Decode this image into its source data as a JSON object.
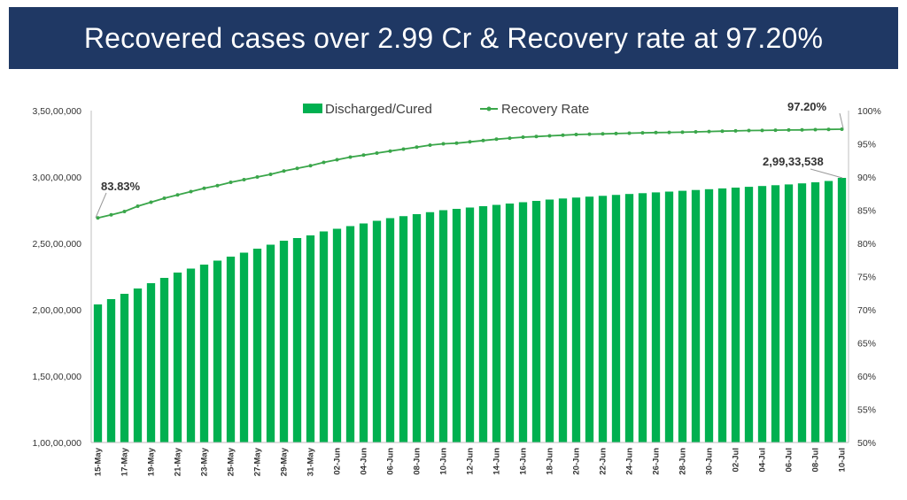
{
  "banner": {
    "title": "Recovered cases over 2.99 Cr & Recovery rate at 97.20%"
  },
  "chart_data": {
    "type": "bar",
    "categories": [
      "15-May",
      "16-May",
      "17-May",
      "18-May",
      "19-May",
      "20-May",
      "21-May",
      "22-May",
      "23-May",
      "24-May",
      "25-May",
      "26-May",
      "27-May",
      "28-May",
      "29-May",
      "30-May",
      "31-May",
      "01-Jun",
      "02-Jun",
      "03-Jun",
      "04-Jun",
      "05-Jun",
      "06-Jun",
      "07-Jun",
      "08-Jun",
      "09-Jun",
      "10-Jun",
      "11-Jun",
      "12-Jun",
      "13-Jun",
      "14-Jun",
      "15-Jun",
      "16-Jun",
      "17-Jun",
      "18-Jun",
      "19-Jun",
      "20-Jun",
      "21-Jun",
      "22-Jun",
      "23-Jun",
      "24-Jun",
      "25-Jun",
      "26-Jun",
      "27-Jun",
      "28-Jun",
      "29-Jun",
      "30-Jun",
      "01-Jul",
      "02-Jul",
      "03-Jul",
      "04-Jul",
      "05-Jul",
      "06-Jul",
      "07-Jul",
      "08-Jul",
      "09-Jul",
      "10-Jul"
    ],
    "x_tick_labels": [
      "15-May",
      "17-May",
      "19-May",
      "21-May",
      "23-May",
      "25-May",
      "27-May",
      "29-May",
      "31-May",
      "02-Jun",
      "04-Jun",
      "06-Jun",
      "08-Jun",
      "10-Jun",
      "12-Jun",
      "14-Jun",
      "16-Jun",
      "18-Jun",
      "20-Jun",
      "22-Jun",
      "24-Jun",
      "26-Jun",
      "28-Jun",
      "30-Jun",
      "02-Jul",
      "04-Jul",
      "06-Jul",
      "08-Jul",
      "10-Jul"
    ],
    "series": [
      {
        "name": "Discharged/Cured",
        "type": "bar",
        "axis": "left",
        "color": "#00b050",
        "values": [
          20400000,
          20800000,
          21200000,
          21600000,
          22000000,
          22400000,
          22800000,
          23100000,
          23400000,
          23700000,
          24000000,
          24300000,
          24600000,
          24900000,
          25200000,
          25400000,
          25600000,
          25900000,
          26100000,
          26300000,
          26500000,
          26700000,
          26900000,
          27050000,
          27200000,
          27350000,
          27500000,
          27600000,
          27700000,
          27800000,
          27900000,
          28000000,
          28100000,
          28200000,
          28300000,
          28380000,
          28450000,
          28520000,
          28580000,
          28650000,
          28720000,
          28780000,
          28840000,
          28900000,
          28960000,
          29020000,
          29080000,
          29140000,
          29200000,
          29260000,
          29320000,
          29380000,
          29440000,
          29520000,
          29600000,
          29700000,
          29933538
        ]
      },
      {
        "name": "Recovery Rate",
        "type": "line",
        "axis": "right",
        "color": "#3aa64a",
        "values": [
          83.83,
          84.3,
          84.8,
          85.6,
          86.2,
          86.8,
          87.3,
          87.8,
          88.3,
          88.7,
          89.2,
          89.6,
          90.0,
          90.4,
          90.9,
          91.3,
          91.7,
          92.2,
          92.6,
          93.0,
          93.3,
          93.6,
          93.9,
          94.2,
          94.5,
          94.8,
          95.0,
          95.1,
          95.3,
          95.5,
          95.7,
          95.85,
          96.0,
          96.1,
          96.2,
          96.3,
          96.4,
          96.45,
          96.5,
          96.55,
          96.6,
          96.65,
          96.7,
          96.72,
          96.75,
          96.8,
          96.85,
          96.9,
          96.95,
          97.0,
          97.02,
          97.05,
          97.08,
          97.1,
          97.14,
          97.17,
          97.2
        ]
      }
    ],
    "y_left": {
      "ylim": [
        10000000,
        35000000
      ],
      "ticks": [
        10000000,
        15000000,
        20000000,
        25000000,
        30000000,
        35000000
      ],
      "tick_labels": [
        "1,00,00,000",
        "1,50,00,000",
        "2,00,00,000",
        "2,50,00,000",
        "3,00,00,000",
        "3,50,00,000"
      ]
    },
    "y_right": {
      "ylim": [
        50,
        100
      ],
      "ticks": [
        50,
        55,
        60,
        65,
        70,
        75,
        80,
        85,
        90,
        95,
        100
      ],
      "tick_labels": [
        "50%",
        "55%",
        "60%",
        "65%",
        "70%",
        "75%",
        "80%",
        "85%",
        "90%",
        "95%",
        "100%"
      ]
    },
    "annotations": {
      "start_rate": "83.83%",
      "end_rate": "97.20%",
      "end_cases": "2,99,33,538"
    },
    "legend_position": "top-center",
    "grid": false
  }
}
